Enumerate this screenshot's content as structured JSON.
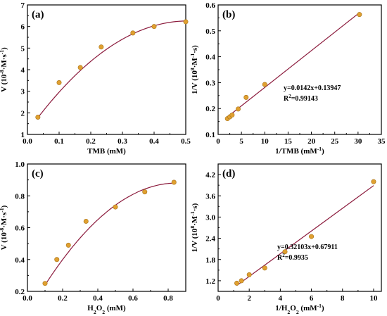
{
  "chart_data": [
    {
      "type": "scatter",
      "panel_label": "(a)",
      "xlabel": "TMB (mM)",
      "ylabel": "V (10⁻⁸·M·s⁻¹)",
      "xlim": [
        0,
        0.5
      ],
      "ylim": [
        1,
        7
      ],
      "xticks": [
        "0.0",
        "0.1",
        "0.2",
        "0.3",
        "0.4",
        "0.5"
      ],
      "yticks": [
        "1",
        "2",
        "3",
        "4",
        "5",
        "6",
        "7"
      ],
      "x": [
        0.033,
        0.1,
        0.167,
        0.233,
        0.333,
        0.4,
        0.5
      ],
      "y": [
        1.8,
        3.4,
        4.1,
        5.05,
        5.7,
        6.0,
        6.22
      ],
      "fit": {
        "type": "polynomial",
        "coeffs": [
          1.13,
          20.3,
          -20.1
        ],
        "range": [
          0.033,
          0.5
        ]
      },
      "point_color": "#e0a030",
      "line_color": "#8b1a3c"
    },
    {
      "type": "scatter",
      "panel_label": "(b)",
      "xlabel": "1/TMB (mM⁻¹)",
      "ylabel": "1/V (10⁸·M⁻¹·s)",
      "xlim": [
        0,
        35
      ],
      "ylim": [
        0.1,
        0.6
      ],
      "xticks": [
        "0",
        "5",
        "10",
        "15",
        "20",
        "25",
        "30",
        "35"
      ],
      "yticks": [
        "0.1",
        "0.2",
        "0.3",
        "0.4",
        "0.5",
        "0.6"
      ],
      "x": [
        2.0,
        2.5,
        3.0,
        4.3,
        6.0,
        10.0,
        30.3
      ],
      "y": [
        0.161,
        0.168,
        0.175,
        0.198,
        0.243,
        0.293,
        0.563
      ],
      "fit": {
        "type": "linear",
        "slope": 0.0142,
        "intercept": 0.13947,
        "range": [
          1.7,
          30.3
        ]
      },
      "equation": "y=0.0142x+0.13947",
      "r2": "R²=0.99143",
      "point_color": "#e0a030",
      "line_color": "#8b1a3c"
    },
    {
      "type": "scatter",
      "panel_label": "(c)",
      "xlabel": "H₂O₂ (mM)",
      "ylabel": "V (10⁻⁸·M·s⁻¹)",
      "xlim": [
        0,
        0.9
      ],
      "ylim": [
        0.2,
        1.0
      ],
      "xticks": [
        "0.0",
        "0.2",
        "0.4",
        "0.6",
        "0.8"
      ],
      "yticks": [
        "0.2",
        "0.4",
        "0.6",
        "0.8",
        "1.0"
      ],
      "x": [
        0.1,
        0.167,
        0.233,
        0.333,
        0.5,
        0.667,
        0.833
      ],
      "y": [
        0.25,
        0.4,
        0.49,
        0.64,
        0.73,
        0.825,
        0.885
      ],
      "fit": {
        "type": "polynomial",
        "coeffs": [
          0.0575,
          1.938,
          -1.141
        ],
        "range": [
          0.1,
          0.833
        ]
      },
      "point_color": "#e0a030",
      "line_color": "#8b1a3c"
    },
    {
      "type": "scatter",
      "panel_label": "(d)",
      "xlabel": "1/H₂O₂ (mM⁻¹)",
      "ylabel": "1/V (10⁸·M⁻¹·s)",
      "xlim": [
        0,
        10.5
      ],
      "ylim": [
        0.9,
        4.5
      ],
      "xticks": [
        "0",
        "2",
        "4",
        "6",
        "8",
        "10"
      ],
      "yticks": [
        "1.2",
        "1.8",
        "2.4",
        "3.0",
        "3.6",
        "4.2"
      ],
      "x": [
        1.2,
        1.5,
        2.0,
        3.0,
        4.3,
        6.0,
        10.0
      ],
      "y": [
        1.13,
        1.2,
        1.37,
        1.56,
        2.02,
        2.45,
        4.0
      ],
      "fit": {
        "type": "linear",
        "slope": 0.32103,
        "intercept": 0.67911,
        "range": [
          1.2,
          10.0
        ]
      },
      "equation": "y=0.32103x+0.67911",
      "r2": "R²=0.9935",
      "point_color": "#e0a030",
      "line_color": "#8b1a3c"
    }
  ]
}
